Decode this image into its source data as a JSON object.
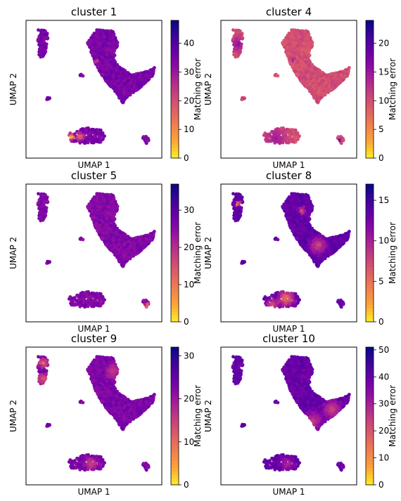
{
  "colorbar_colors": [
    "#fde725",
    "#fca636",
    "#f1844b",
    "#e16462",
    "#cc4778",
    "#b12a90",
    "#8f0da4",
    "#6a00a8",
    "#41049d",
    "#0d0887"
  ],
  "chart_data": [
    {
      "type": "scatter",
      "title": "cluster 1",
      "xlabel": "UMAP 1",
      "ylabel": "UMAP 2",
      "colorbar": {
        "label": "Matching error",
        "min": 0,
        "max": 48,
        "ticks": [
          0,
          10,
          20,
          30,
          40
        ]
      },
      "base_value": 35,
      "hotspots": [
        {
          "x": 3.2,
          "y": 1.3,
          "value": 3,
          "radius": 0.4
        },
        {
          "x": 3.9,
          "y": 1.35,
          "value": 12,
          "radius": 0.45
        },
        {
          "x": 5.2,
          "y": 7.2,
          "value": 18,
          "radius": 0.2
        }
      ]
    },
    {
      "type": "scatter",
      "title": "cluster 4",
      "xlabel": "UMAP 1",
      "ylabel": "UMAP 2",
      "colorbar": {
        "label": "Matching error",
        "min": 0,
        "max": 24,
        "ticks": [
          0,
          5,
          10,
          15,
          20
        ]
      },
      "base_value": 10,
      "hotspots": [
        {
          "x": 5.3,
          "y": 7.3,
          "value": 22,
          "radius": 0.2
        },
        {
          "x": 3.0,
          "y": 6.4,
          "value": 20,
          "radius": 0.2
        },
        {
          "x": 9.0,
          "y": 1.1,
          "value": 20,
          "radius": 0.25
        },
        {
          "x": 1.0,
          "y": 8.5,
          "value": 16,
          "radius": 0.8
        },
        {
          "x": 4.0,
          "y": 1.2,
          "value": 15,
          "radius": 1.2
        }
      ]
    },
    {
      "type": "scatter",
      "title": "cluster 5",
      "xlabel": "UMAP 1",
      "ylabel": "UMAP 2",
      "colorbar": {
        "label": "Matching error",
        "min": 0,
        "max": 37,
        "ticks": [
          0,
          10,
          20,
          30
        ]
      },
      "base_value": 26,
      "hotspots": [
        {
          "x": 9.2,
          "y": 0.9,
          "value": 6,
          "radius": 0.3
        },
        {
          "x": 5.2,
          "y": 6.4,
          "value": 30,
          "radius": 0.2
        }
      ]
    },
    {
      "type": "scatter",
      "title": "cluster 8",
      "xlabel": "UMAP 1",
      "ylabel": "UMAP 2",
      "colorbar": {
        "label": "Matching error",
        "min": 0,
        "max": 17,
        "ticks": [
          0,
          5,
          10,
          15
        ]
      },
      "base_value": 13.5,
      "hotspots": [
        {
          "x": 5.2,
          "y": 6.4,
          "value": 2,
          "radius": 0.2
        },
        {
          "x": 1.0,
          "y": 8.8,
          "value": 3,
          "radius": 0.3
        },
        {
          "x": 4.8,
          "y": 1.5,
          "value": 4,
          "radius": 0.9
        },
        {
          "x": 6.0,
          "y": 8.3,
          "value": 5,
          "radius": 0.4
        },
        {
          "x": 3.7,
          "y": 1.0,
          "value": 6,
          "radius": 0.7
        },
        {
          "x": 7.3,
          "y": 5.6,
          "value": 7,
          "radius": 0.9
        }
      ]
    },
    {
      "type": "scatter",
      "title": "cluster 9",
      "xlabel": "UMAP 1",
      "ylabel": "UMAP 2",
      "colorbar": {
        "label": "Matching error",
        "min": 0,
        "max": 32,
        "ticks": [
          0,
          10,
          20,
          30
        ]
      },
      "base_value": 23,
      "hotspots": [
        {
          "x": 1.0,
          "y": 9.1,
          "value": 8,
          "radius": 0.5
        },
        {
          "x": 1.0,
          "y": 7.9,
          "value": 10,
          "radius": 0.6
        },
        {
          "x": 4.8,
          "y": 1.3,
          "value": 14,
          "radius": 0.7
        },
        {
          "x": 6.5,
          "y": 8.5,
          "value": 15,
          "radius": 0.8
        }
      ]
    },
    {
      "type": "scatter",
      "title": "cluster 10",
      "xlabel": "UMAP 1",
      "ylabel": "UMAP 2",
      "colorbar": {
        "label": "Matching error",
        "min": 0,
        "max": 51,
        "ticks": [
          0,
          10,
          20,
          30,
          40,
          50
        ]
      },
      "base_value": 40,
      "hotspots": [
        {
          "x": 8.4,
          "y": 5.5,
          "value": 22,
          "radius": 1.0
        },
        {
          "x": 6.9,
          "y": 4.6,
          "value": 24,
          "radius": 1.0
        },
        {
          "x": 4.9,
          "y": 1.3,
          "value": 28,
          "radius": 0.7
        }
      ]
    }
  ]
}
